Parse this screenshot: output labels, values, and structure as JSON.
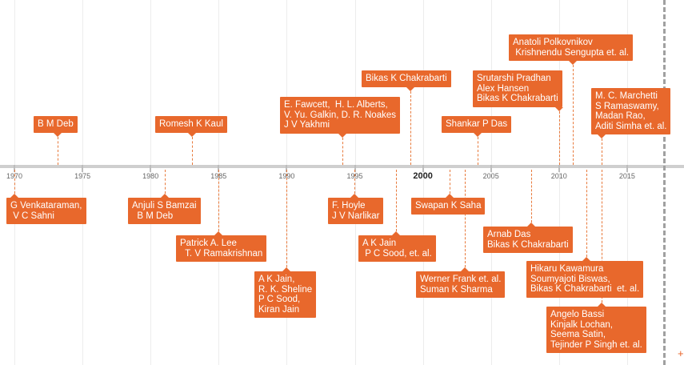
{
  "timeline": {
    "axis_years": [
      {
        "label": "1970",
        "year": 1970
      },
      {
        "label": "1975",
        "year": 1975
      },
      {
        "label": "1980",
        "year": 1980
      },
      {
        "label": "1985",
        "year": 1985
      },
      {
        "label": "1990",
        "year": 1990
      },
      {
        "label": "1995",
        "year": 1995
      },
      {
        "label": "2000",
        "year": 2000,
        "major": true
      },
      {
        "label": "2005",
        "year": 2005
      },
      {
        "label": "2010",
        "year": 2010
      },
      {
        "label": "2015",
        "year": 2015
      }
    ],
    "add_symbol": "+",
    "accent_color": "#e8682c",
    "events": [
      {
        "id": "venkataraman",
        "year": 1970,
        "side": "below",
        "text": "G Venkataraman,\n V C Sahni"
      },
      {
        "id": "deb",
        "year": 1973,
        "side": "above",
        "text": "B M Deb"
      },
      {
        "id": "bamzai",
        "year": 1981,
        "side": "below",
        "text": "Anjuli S Bamzai\n  B M Deb"
      },
      {
        "id": "kaul",
        "year": 1983,
        "side": "above",
        "text": "Romesh K Kaul"
      },
      {
        "id": "lee",
        "year": 1985,
        "side": "below",
        "text": "Patrick A. Lee\n  T. V Ramakrishnan"
      },
      {
        "id": "jain87",
        "year": 1990,
        "side": "below",
        "text": "A K Jain,\nR. K. Sheline\nP C Sood,\nKiran Jain"
      },
      {
        "id": "fawcett",
        "year": 1994,
        "side": "above",
        "text": "E. Fawcett,  H. L. Alberts,\nV. Yu. Galkin, D. R. Noakes\nJ V Yakhmi"
      },
      {
        "id": "hoyle",
        "year": 1995,
        "side": "below",
        "text": "F. Hoyle\nJ V Narlikar"
      },
      {
        "id": "jain98",
        "year": 1998,
        "side": "below",
        "text": "A K Jain\n P C Sood, et. al."
      },
      {
        "id": "chakrabarti99",
        "year": 1999,
        "side": "above",
        "text": "Bikas K Chakrabarti"
      },
      {
        "id": "saha",
        "year": 2002,
        "side": "below",
        "text": "Swapan K Saha"
      },
      {
        "id": "frank",
        "year": 2003,
        "side": "below",
        "text": "Werner Frank et. al.\nSuman K Sharma"
      },
      {
        "id": "das",
        "year": 2004,
        "side": "above",
        "text": "Shankar P Das"
      },
      {
        "id": "arnab",
        "year": 2008,
        "side": "below",
        "text": "Arnab Das\nBikas K Chakrabarti"
      },
      {
        "id": "pradhan",
        "year": 2010,
        "side": "above",
        "text": "Srutarshi Pradhan\nAlex Hansen\nBikas K Chakrabarti"
      },
      {
        "id": "polkovnikov",
        "year": 2011,
        "side": "above",
        "text": "Anatoli Polkovnikov\n Krishnendu Sengupta et. al."
      },
      {
        "id": "kawamura",
        "year": 2012,
        "side": "below",
        "text": "Hikaru Kawamura\nSoumyajoti Biswas,\nBikas K Chakrabarti  et. al."
      },
      {
        "id": "bassi",
        "year": 2013,
        "side": "below",
        "text": "Angelo Bassi\nKinjalk Lochan,\nSeema Satin,\nTejinder P Singh et. al."
      },
      {
        "id": "marchetti",
        "year": 2014,
        "side": "above",
        "text": "M. C. Marchetti\nS Ramaswamy,\nMadan Rao,\nAditi Simha et. al."
      }
    ]
  }
}
